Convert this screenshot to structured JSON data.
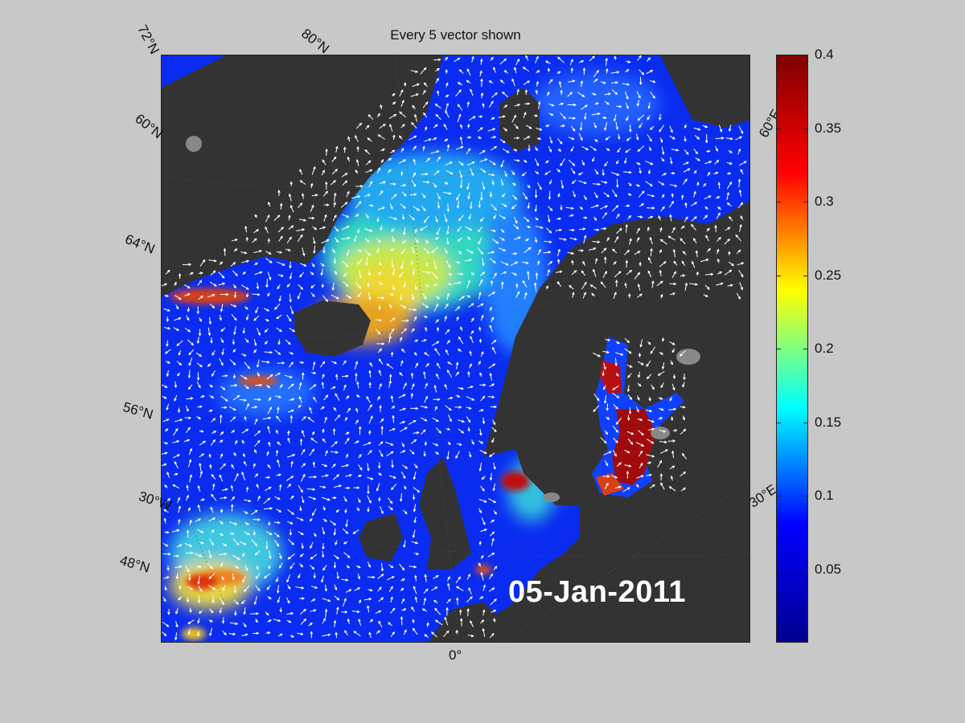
{
  "figure": {
    "title": "Every 5 vector shown",
    "date": "05-Jan-2011"
  },
  "grid_labels": {
    "lat_72": "72°N",
    "lat_80": "80°N",
    "lat_60": "60°N",
    "lat_64": "64°N",
    "lat_56": "56°N",
    "lon_30w": "30°W",
    "lat_48": "48°N",
    "lon_0": "0°",
    "lon_30e": "30°E",
    "lon_60e": "60°E"
  },
  "colorbar": {
    "min": 0,
    "max": 0.4,
    "ticks": [
      "0.4",
      "0.35",
      "0.3",
      "0.25",
      "0.2",
      "0.15",
      "0.1",
      "0.05"
    ],
    "colormap": [
      "#00008f",
      "#0000ff",
      "#00ffff",
      "#ffff00",
      "#ff0000",
      "#800000"
    ]
  },
  "colors": {
    "land": "#333333",
    "ice": "#888888",
    "vectors": "#ffffff",
    "background": "#c8c8c8"
  }
}
